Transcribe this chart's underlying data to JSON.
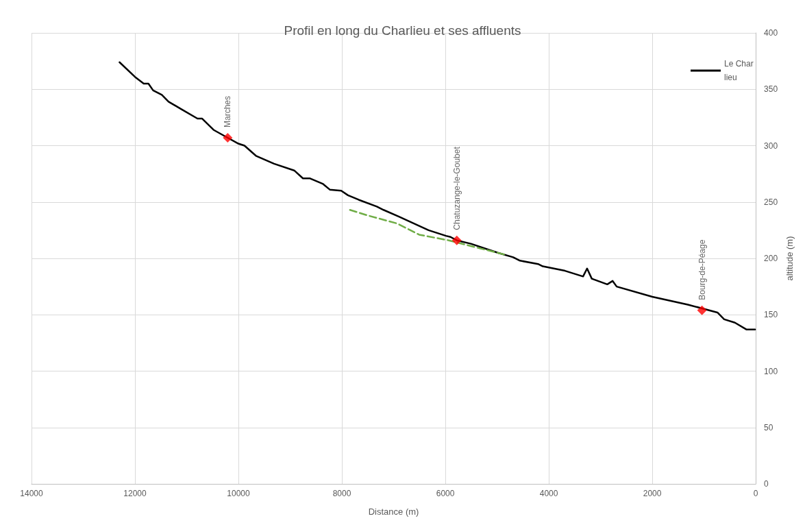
{
  "chart_data": {
    "type": "line",
    "title": "Profil en long du Charlieu et ses affluents",
    "xlabel": "Distance (m)",
    "ylabel": "altitude (m)",
    "xlim": [
      14000,
      0
    ],
    "xticks": [
      0,
      2000,
      4000,
      6000,
      8000,
      10000,
      12000,
      14000
    ],
    "ylim": [
      0,
      400
    ],
    "yticks": [
      0,
      50,
      100,
      150,
      200,
      250,
      300,
      350,
      400
    ],
    "grid": true,
    "legend": "top right",
    "marker": "none",
    "series": [
      {
        "name": "Le Charlieu",
        "color": "#000000",
        "line_style": "solid",
        "x": [
          12299,
          12000,
          11831,
          11740,
          11649,
          11481,
          11351,
          11091,
          10792,
          10701,
          10481,
          10208,
          10013,
          9883,
          9662,
          9312,
          8922,
          8753,
          8623,
          8364,
          8234,
          8013,
          7883,
          7675,
          7325,
          7195,
          6896,
          6325,
          5987,
          5900,
          5779,
          5506,
          5117,
          4987,
          4688,
          4558,
          4208,
          4117,
          3688,
          3338,
          3260,
          3169,
          2870,
          2766,
          2688,
          2000,
          1312,
          740,
          610,
          403,
          182,
          13
        ],
        "values": [
          374,
          361,
          355,
          355,
          349,
          345,
          339,
          332,
          324,
          324,
          314,
          307,
          302,
          300,
          291,
          284,
          278,
          271,
          271,
          266,
          261,
          260,
          256,
          252,
          246,
          243,
          237,
          225,
          220,
          219,
          216,
          213,
          207,
          205,
          201,
          198,
          195,
          193,
          189,
          184,
          191,
          182,
          177,
          180,
          175,
          166,
          159,
          152,
          146,
          143,
          137,
          137
        ]
      },
      {
        "color": "#70ad47",
        "line_style": "dashed",
        "x": [
          7844,
          7494,
          6935,
          6506,
          5935,
          5338,
          4818
        ],
        "values": [
          243,
          238,
          231,
          221,
          216,
          209,
          203
        ]
      },
      {
        "type": "scatter",
        "marker": "diamond",
        "color": "#ff0000",
        "x": [
          10208,
          5779,
          1039
        ],
        "values": [
          307,
          216,
          154
        ],
        "value_labels": [
          "Marches",
          "Chatuzange-le-Goubet",
          "Bourg-de-Péage"
        ]
      }
    ]
  }
}
